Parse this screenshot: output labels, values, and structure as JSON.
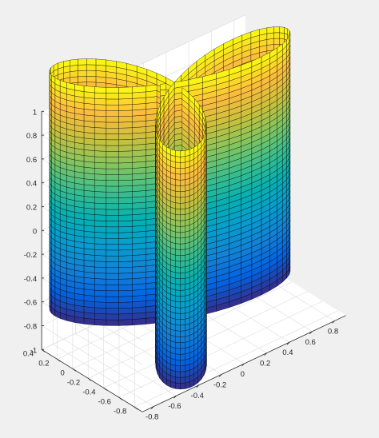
{
  "chart_data": {
    "type": "surface3d",
    "title": "",
    "xlabel": "",
    "ylabel": "",
    "zlabel": "",
    "grid": true,
    "box": true,
    "colormap": "parula",
    "edge_color": "#000000",
    "background": "#f0f0f0",
    "axes_background": "#ffffff",
    "xlim": [
      -0.9,
      0.9
    ],
    "ylim": [
      -0.9,
      0.4
    ],
    "zlim": [
      -1,
      1
    ],
    "xticks": [
      -0.8,
      -0.6,
      -0.4,
      -0.2,
      0,
      0.2,
      0.4,
      0.6,
      0.8
    ],
    "xtick_labels": [
      "-0.8",
      "-0.6",
      "-0.4",
      "-0.2",
      "0",
      "0.2",
      "0.4",
      "0.6",
      "0.8"
    ],
    "yticks": [
      -0.8,
      -0.6,
      -0.4,
      -0.2,
      0,
      0.2,
      0.4
    ],
    "ytick_labels": [
      "-0.8",
      "-0.6",
      "-0.4",
      "-0.2",
      "0",
      "0.2",
      "0.4"
    ],
    "zticks": [
      -1,
      -0.8,
      -0.6,
      -0.4,
      -0.2,
      0,
      0.2,
      0.4,
      0.6,
      0.8,
      1
    ],
    "ztick_labels": [
      "-1",
      "-0.8",
      "-0.6",
      "-0.4",
      "-0.2",
      "0",
      "0.2",
      "0.4",
      "0.6",
      "0.8",
      "1"
    ],
    "surface": {
      "description_curve": "three-petal rose r = cos(3*theta), extruded vertically",
      "theta_range": [
        0,
        3.14159
      ],
      "theta_samples": 90,
      "z_values_min": -1,
      "z_values_max": 1,
      "z_samples": 41
    }
  }
}
